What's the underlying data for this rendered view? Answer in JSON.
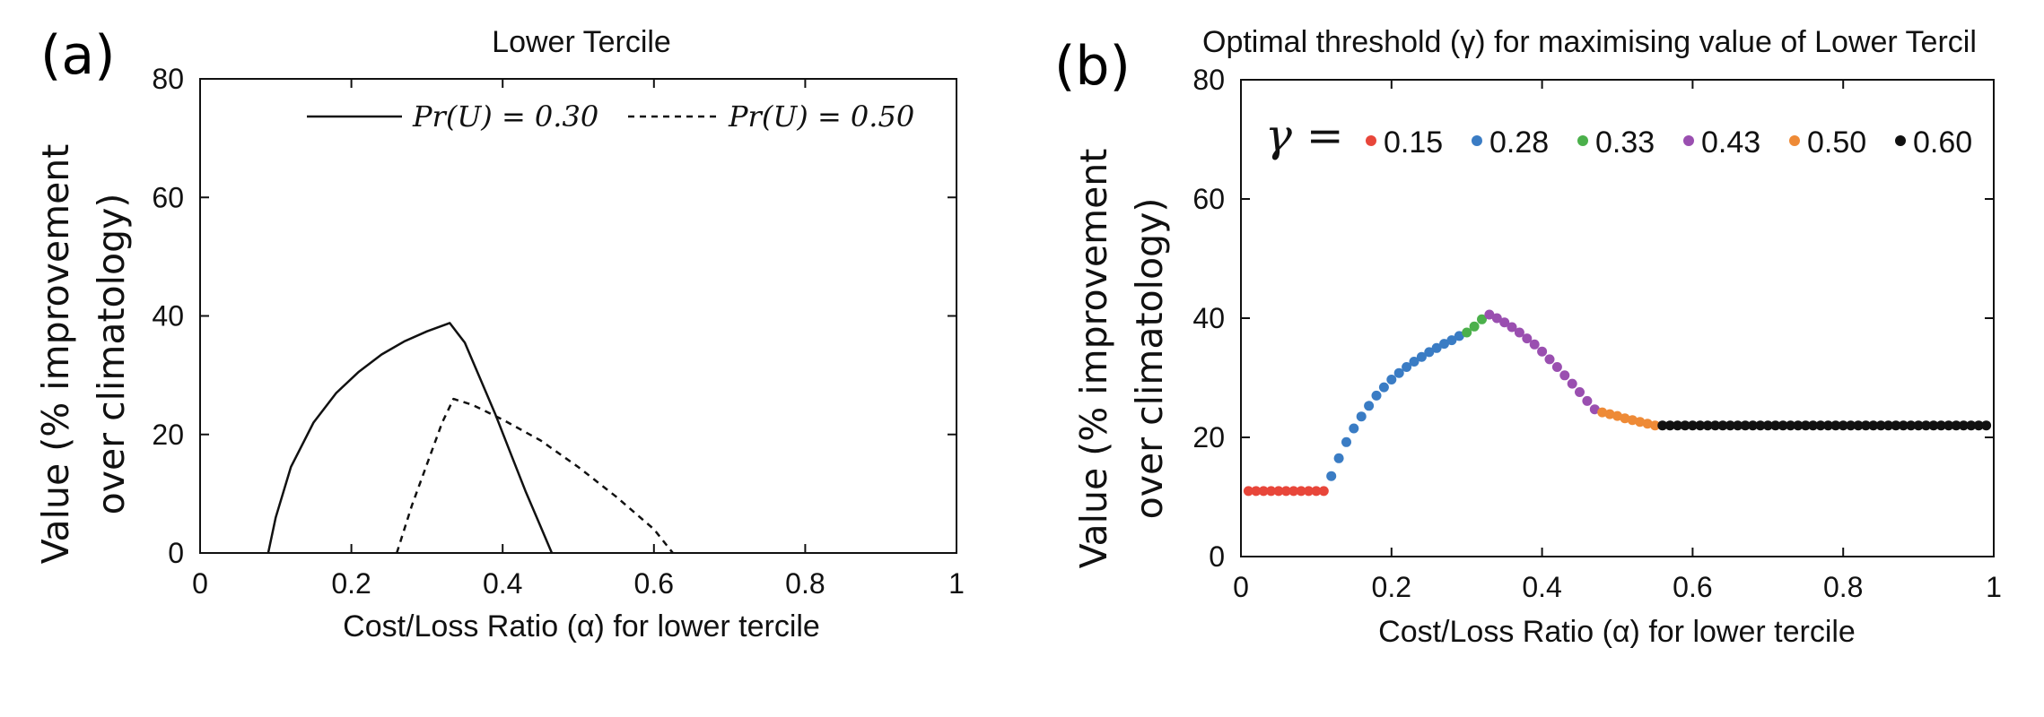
{
  "chart_data": [
    {
      "panel_label": "(a)",
      "type": "line",
      "title": "Lower Tercile",
      "xlabel": "Cost/Loss Ratio (α) for lower tercile",
      "ylabel_lines": [
        "Value (% improvement",
        "over climatology)"
      ],
      "xlim": [
        0,
        1
      ],
      "ylim": [
        0,
        80
      ],
      "xticks": [
        0,
        0.2,
        0.4,
        0.6,
        0.8,
        1
      ],
      "xtick_labels": [
        "0",
        "0.2",
        "0.4",
        "0.6",
        "0.8",
        "1"
      ],
      "yticks": [
        0,
        20,
        40,
        60,
        80
      ],
      "ytick_labels": [
        "0",
        "20",
        "40",
        "60",
        "80"
      ],
      "grid": false,
      "legend_position": "top",
      "series": [
        {
          "name": "Pr(U) = 0.30",
          "style": "solid",
          "x": [
            0.09,
            0.1,
            0.12,
            0.15,
            0.18,
            0.21,
            0.24,
            0.27,
            0.3,
            0.33,
            0.35,
            0.37,
            0.39,
            0.41,
            0.43,
            0.45,
            0.465
          ],
          "y": [
            0,
            6,
            14.5,
            22,
            27,
            30.6,
            33.5,
            35.7,
            37.4,
            38.8,
            35.5,
            29.5,
            23.5,
            17,
            10.5,
            4.5,
            0
          ]
        },
        {
          "name": "Pr(U) = 0.50",
          "style": "dashed",
          "x": [
            0.26,
            0.28,
            0.3,
            0.32,
            0.335,
            0.36,
            0.4,
            0.45,
            0.5,
            0.55,
            0.6,
            0.625
          ],
          "y": [
            0,
            8,
            15,
            22,
            26,
            25,
            22.5,
            19,
            14.5,
            9.5,
            4,
            0
          ]
        }
      ]
    },
    {
      "panel_label": "(b)",
      "type": "scatter",
      "title": "Optimal threshold (γ) for maximising value of Lower Tercil",
      "xlabel": "Cost/Loss Ratio (α) for lower tercile",
      "ylabel_lines": [
        "Value (% improvement",
        "over climatology)"
      ],
      "xlim": [
        0,
        1
      ],
      "ylim": [
        0,
        80
      ],
      "xticks": [
        0,
        0.2,
        0.4,
        0.6,
        0.8,
        1
      ],
      "xtick_labels": [
        "0",
        "0.2",
        "0.4",
        "0.6",
        "0.8",
        "1"
      ],
      "yticks": [
        0,
        20,
        40,
        60,
        80
      ],
      "ytick_labels": [
        "0",
        "20",
        "40",
        "60",
        "80"
      ],
      "grid": false,
      "legend_position": "top",
      "legend_symbol": "γ =",
      "series": [
        {
          "name": "0.15",
          "color": "#e8463a",
          "x": [
            0.01,
            0.02,
            0.03,
            0.04,
            0.05,
            0.06,
            0.07,
            0.08,
            0.09,
            0.1,
            0.11
          ],
          "y": [
            11,
            11,
            11,
            11,
            11,
            11,
            11,
            11,
            11,
            11,
            11
          ]
        },
        {
          "name": "0.28",
          "color": "#3a7cc4",
          "x": [
            0.12,
            0.13,
            0.14,
            0.15,
            0.16,
            0.17,
            0.18,
            0.19,
            0.2,
            0.21,
            0.22,
            0.23,
            0.24,
            0.25,
            0.26,
            0.27,
            0.28,
            0.29
          ],
          "y": [
            13.5,
            16.5,
            19.2,
            21.5,
            23.5,
            25.3,
            27,
            28.4,
            29.7,
            30.8,
            31.8,
            32.7,
            33.5,
            34.3,
            35,
            35.7,
            36.3,
            37
          ]
        },
        {
          "name": "0.33",
          "color": "#4bb04b",
          "x": [
            0.3,
            0.31,
            0.32
          ],
          "y": [
            37.6,
            38.6,
            39.8
          ]
        },
        {
          "name": "0.43",
          "color": "#9a4fb0",
          "x": [
            0.33,
            0.34,
            0.35,
            0.36,
            0.37,
            0.38,
            0.39,
            0.4,
            0.41,
            0.42,
            0.43,
            0.44,
            0.45,
            0.46,
            0.47
          ],
          "y": [
            40.6,
            40,
            39.3,
            38.5,
            37.6,
            36.6,
            35.6,
            34.4,
            33.1,
            31.8,
            30.4,
            29,
            27.6,
            26.1,
            24.7
          ]
        },
        {
          "name": "0.50",
          "color": "#ee8a36",
          "x": [
            0.48,
            0.49,
            0.5,
            0.51,
            0.52,
            0.53,
            0.54,
            0.55
          ],
          "y": [
            24.2,
            23.9,
            23.6,
            23.2,
            22.9,
            22.6,
            22.3,
            22
          ]
        },
        {
          "name": "0.60",
          "color": "#111111",
          "x": [
            0.56,
            0.57,
            0.58,
            0.59,
            0.6,
            0.61,
            0.62,
            0.63,
            0.64,
            0.65,
            0.66,
            0.67,
            0.68,
            0.69,
            0.7,
            0.71,
            0.72,
            0.73,
            0.74,
            0.75,
            0.76,
            0.77,
            0.78,
            0.79,
            0.8,
            0.81,
            0.82,
            0.83,
            0.84,
            0.85,
            0.86,
            0.87,
            0.88,
            0.89,
            0.9,
            0.91,
            0.92,
            0.93,
            0.94,
            0.95,
            0.96,
            0.97,
            0.98,
            0.99
          ],
          "y": [
            22,
            22,
            22,
            22,
            22,
            22,
            22,
            22,
            22,
            22,
            22,
            22,
            22,
            22,
            22,
            22,
            22,
            22,
            22,
            22,
            22,
            22,
            22,
            22,
            22,
            22,
            22,
            22,
            22,
            22,
            22,
            22,
            22,
            22,
            22,
            22,
            22,
            22,
            22,
            22,
            22,
            22,
            22,
            22
          ]
        }
      ]
    }
  ]
}
